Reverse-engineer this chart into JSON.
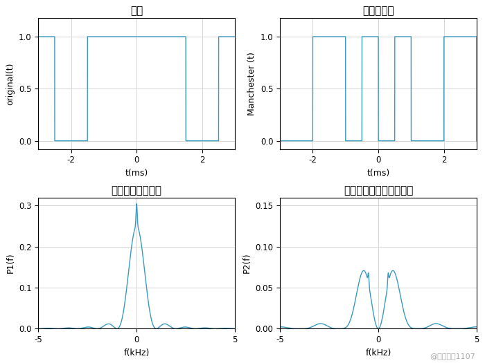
{
  "title1": "原码",
  "title2": "数字双向码",
  "title3": "原码功率谱密度图",
  "title4": "数字双相码功率谱密度图",
  "ylabel1": "original(t)",
  "ylabel2": "Manchester (t)",
  "ylabel3": "P1(f)",
  "ylabel4": "P2(f)",
  "xlabel_time": "t(ms)",
  "xlabel_freq": "f(kHz)",
  "line_color": "#3a9abf",
  "background": "#ffffff",
  "watermark": "@水月千寻1107",
  "bits_orig": [
    1,
    0,
    1,
    1,
    1,
    0,
    1
  ],
  "bit_edges": [
    -3.5,
    -2.5,
    -1.5,
    -0.5,
    0.5,
    1.5,
    2.5,
    3.5
  ],
  "t_range": [
    -3,
    3
  ],
  "f_range": [
    -5,
    5
  ],
  "psd1_ylim": [
    0,
    0.32
  ],
  "psd2_ylim": [
    0,
    0.16
  ],
  "psd1_yticks": [
    0,
    0.1,
    0.2,
    0.3
  ],
  "psd2_yticks": [
    0,
    0.05,
    0.1,
    0.15
  ],
  "time_xticks": [
    -2,
    0,
    2
  ],
  "freq_xticks": [
    -5,
    0,
    5
  ],
  "time_yticks": [
    0,
    0.5,
    1
  ]
}
